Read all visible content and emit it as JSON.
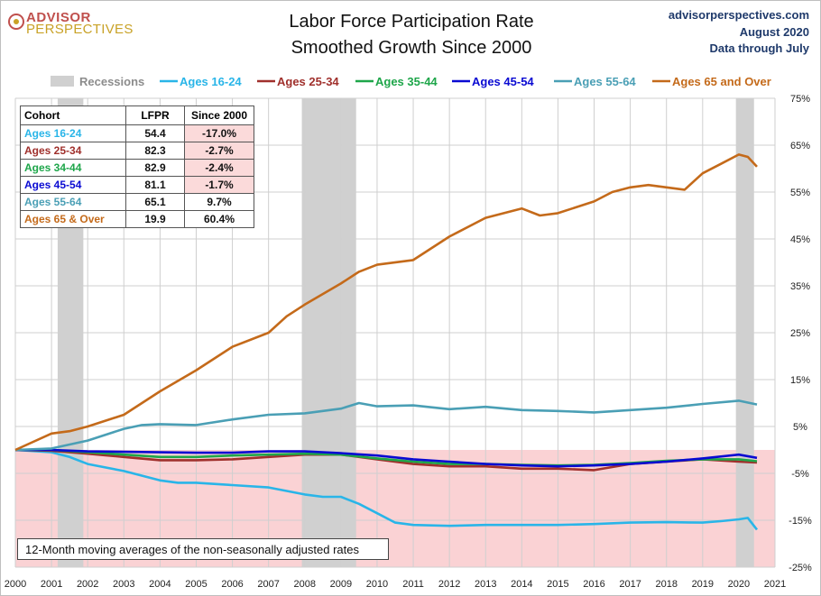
{
  "header": {
    "logo_line1": "ADVISOR",
    "logo_line2": "PERSPECTIVES",
    "title_line1": "Labor Force Participation Rate",
    "title_line2": "Smoothed Growth Since 2000",
    "source_line1": "advisorperspectives.com",
    "source_line2": "August 2020",
    "source_line3": "Data through July"
  },
  "note": "12-Month moving  averages of the non-seasonally adjusted rates",
  "table": {
    "headers": [
      "Cohort",
      "LFPR",
      "Since 2000"
    ],
    "rows": [
      {
        "cohort": "Ages 16-24",
        "lfpr": "54.4",
        "since": "-17.0%",
        "color": "#29b5e8"
      },
      {
        "cohort": "Ages 25-34",
        "lfpr": "82.3",
        "since": "-2.7%",
        "color": "#a0302c"
      },
      {
        "cohort": "Ages 34-44",
        "lfpr": "82.9",
        "since": "-2.4%",
        "color": "#1ea64a"
      },
      {
        "cohort": "Ages 45-54",
        "lfpr": "81.1",
        "since": "-1.7%",
        "color": "#0a0ad2"
      },
      {
        "cohort": "Ages 55-64",
        "lfpr": "65.1",
        "since": "9.7%",
        "color": "#4a9fb5"
      },
      {
        "cohort": "Ages 65  & Over",
        "lfpr": "19.9",
        "since": "60.4%",
        "color": "#c46a1a"
      }
    ]
  },
  "chart_data": {
    "type": "line",
    "title": "Labor Force Participation Rate Smoothed Growth Since 2000",
    "xlim": [
      2000,
      2021
    ],
    "ylim": [
      -25,
      75
    ],
    "y_ticks": [
      -25,
      -15,
      -5,
      5,
      15,
      25,
      35,
      45,
      55,
      65,
      75
    ],
    "y_tick_labels": [
      "-25%",
      "-15%",
      "-5%",
      "5%",
      "15%",
      "25%",
      "35%",
      "45%",
      "55%",
      "65%",
      "75%"
    ],
    "x_ticks": [
      2000,
      2001,
      2002,
      2003,
      2004,
      2005,
      2006,
      2007,
      2008,
      2009,
      2010,
      2011,
      2012,
      2013,
      2014,
      2015,
      2016,
      2017,
      2018,
      2019,
      2020,
      2021
    ],
    "x_tick_labels": [
      "2000",
      "2001",
      "2002",
      "2003",
      "2004",
      "2005",
      "2006",
      "2007",
      "2008",
      "2009",
      "2010",
      "2011",
      "2012",
      "2013",
      "2014",
      "2015",
      "2016",
      "2017",
      "2018",
      "2019",
      "2020",
      "2021"
    ],
    "grid": true,
    "negative_region_color": "#fad2d4",
    "recessions": [
      {
        "start": 2001.17,
        "end": 2001.88
      },
      {
        "start": 2007.92,
        "end": 2009.42
      },
      {
        "start": 2019.92,
        "end": 2020.42
      }
    ],
    "legend_position": "top",
    "recession_label": "Recessions",
    "recession_color": "#d0d0d0",
    "series": [
      {
        "name": "Ages 16-24",
        "color": "#29b5e8",
        "x": [
          2000,
          2001,
          2001.5,
          2002,
          2003,
          2004,
          2004.5,
          2005,
          2006,
          2007,
          2008,
          2008.5,
          2009,
          2009.5,
          2010,
          2010.5,
          2011,
          2012,
          2013,
          2014,
          2015,
          2016,
          2017,
          2018,
          2019,
          2019.5,
          2020,
          2020.25,
          2020.5
        ],
        "y": [
          0,
          -0.5,
          -1.5,
          -3,
          -4.5,
          -6.5,
          -7,
          -7,
          -7.5,
          -8,
          -9.5,
          -10,
          -10,
          -11.5,
          -13.5,
          -15.5,
          -16,
          -16.2,
          -16,
          -16,
          -16,
          -15.8,
          -15.5,
          -15.4,
          -15.5,
          -15.2,
          -14.8,
          -14.5,
          -17
        ]
      },
      {
        "name": "Ages 25-34",
        "color": "#a0302c",
        "x": [
          2000,
          2001,
          2002,
          2003,
          2004,
          2005,
          2006,
          2007,
          2008,
          2009,
          2010,
          2011,
          2012,
          2013,
          2014,
          2015,
          2016,
          2017,
          2018,
          2019,
          2020,
          2020.5
        ],
        "y": [
          0,
          -0.2,
          -0.8,
          -1.5,
          -2.2,
          -2.2,
          -2,
          -1.5,
          -1,
          -1,
          -2,
          -3,
          -3.5,
          -3.5,
          -4,
          -4,
          -4.3,
          -3,
          -2.5,
          -2,
          -2.5,
          -2.7
        ]
      },
      {
        "name": "Ages 35-44",
        "color": "#1ea64a",
        "x": [
          2000,
          2001,
          2002,
          2003,
          2004,
          2005,
          2006,
          2007,
          2008,
          2009,
          2010,
          2011,
          2012,
          2013,
          2014,
          2015,
          2016,
          2017,
          2018,
          2019,
          2020,
          2020.5
        ],
        "y": [
          0,
          0,
          -0.5,
          -1,
          -1.5,
          -1.5,
          -1.2,
          -1,
          -0.8,
          -1,
          -1.8,
          -2.5,
          -3,
          -3,
          -3.2,
          -3.3,
          -3.2,
          -2.8,
          -2.3,
          -2,
          -2,
          -2.4
        ]
      },
      {
        "name": "Ages 45-54",
        "color": "#0a0ad2",
        "x": [
          2000,
          2001,
          2002,
          2003,
          2004,
          2005,
          2006,
          2007,
          2008,
          2009,
          2010,
          2011,
          2012,
          2013,
          2014,
          2015,
          2016,
          2017,
          2018,
          2019,
          2020,
          2020.5
        ],
        "y": [
          0,
          0,
          -0.3,
          -0.4,
          -0.5,
          -0.6,
          -0.6,
          -0.3,
          -0.3,
          -0.7,
          -1.2,
          -2,
          -2.5,
          -3,
          -3.3,
          -3.5,
          -3.3,
          -3,
          -2.5,
          -1.8,
          -1,
          -1.7
        ]
      },
      {
        "name": "Ages 55-64",
        "color": "#4a9fb5",
        "x": [
          2000,
          2001,
          2002,
          2003,
          2003.5,
          2004,
          2005,
          2006,
          2007,
          2008,
          2009,
          2009.5,
          2010,
          2011,
          2012,
          2013,
          2014,
          2015,
          2016,
          2017,
          2018,
          2019,
          2020,
          2020.5
        ],
        "y": [
          0,
          0.3,
          2,
          4.5,
          5.3,
          5.5,
          5.3,
          6.5,
          7.5,
          7.8,
          8.8,
          10,
          9.3,
          9.5,
          8.7,
          9.2,
          8.5,
          8.3,
          8,
          8.5,
          9,
          9.8,
          10.5,
          9.7
        ]
      },
      {
        "name": "Ages 65 and Over",
        "color": "#c46a1a",
        "x": [
          2000,
          2001,
          2001.5,
          2002,
          2003,
          2004,
          2005,
          2006,
          2007,
          2007.5,
          2008,
          2009,
          2009.5,
          2010,
          2011,
          2012,
          2013,
          2014,
          2014.5,
          2015,
          2016,
          2016.5,
          2017,
          2017.5,
          2018,
          2018.5,
          2019,
          2019.5,
          2020,
          2020.25,
          2020.5
        ],
        "y": [
          0,
          3.5,
          4,
          5,
          7.5,
          12.5,
          17,
          22,
          25,
          28.5,
          31,
          35.5,
          38,
          39.5,
          40.5,
          45.5,
          49.5,
          51.5,
          50,
          50.5,
          53,
          55,
          56,
          56.5,
          56,
          55.5,
          59,
          61,
          63,
          62.5,
          60.4
        ]
      }
    ]
  }
}
